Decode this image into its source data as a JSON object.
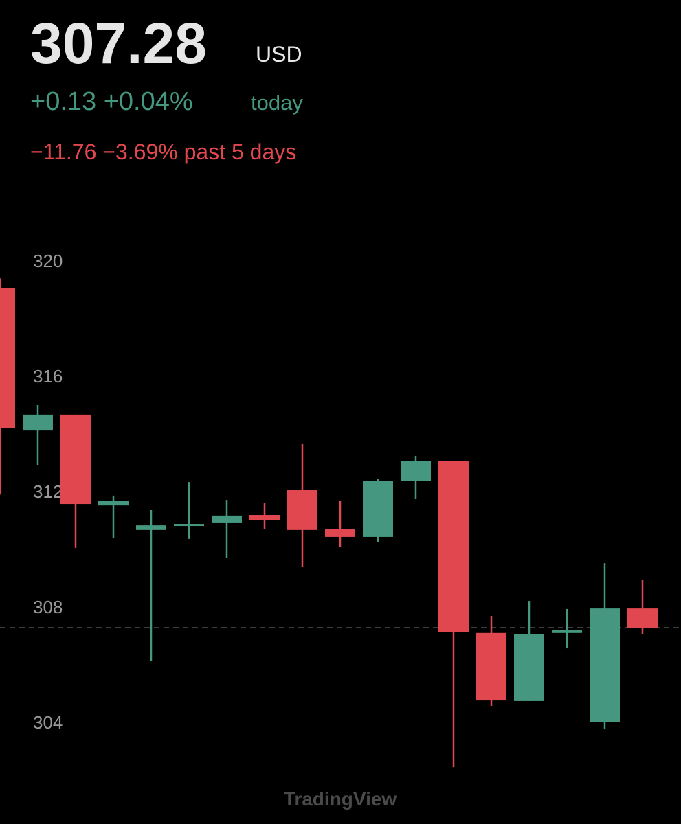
{
  "header": {
    "price": 307.28,
    "currency": "USD",
    "change_today": "+0.13 +0.04%",
    "today_label": "today",
    "change_5d": "−11.76 −3.69% past 5 days"
  },
  "chart_data": {
    "type": "candlestick",
    "candles": [
      {
        "open": 319.05,
        "high": 319.4,
        "low": 311.9,
        "close": 314.2
      },
      {
        "open": 314.14,
        "high": 315.0,
        "low": 312.93,
        "close": 314.67
      },
      {
        "open": 314.67,
        "high": 314.67,
        "low": 310.05,
        "close": 311.57
      },
      {
        "open": 311.52,
        "high": 311.86,
        "low": 310.38,
        "close": 311.67
      },
      {
        "open": 310.67,
        "high": 311.36,
        "low": 306.14,
        "close": 310.83
      },
      {
        "open": 310.83,
        "high": 312.33,
        "low": 310.36,
        "close": 310.88
      },
      {
        "open": 310.93,
        "high": 311.71,
        "low": 309.69,
        "close": 311.17
      },
      {
        "open": 311.19,
        "high": 311.6,
        "low": 310.71,
        "close": 311.0
      },
      {
        "open": 312.07,
        "high": 313.67,
        "low": 309.38,
        "close": 310.67
      },
      {
        "open": 310.71,
        "high": 311.67,
        "low": 310.07,
        "close": 310.43
      },
      {
        "open": 310.43,
        "high": 312.45,
        "low": 310.26,
        "close": 312.38
      },
      {
        "open": 312.38,
        "high": 313.24,
        "low": 311.74,
        "close": 313.07
      },
      {
        "open": 313.05,
        "high": 313.05,
        "low": 302.45,
        "close": 307.14
      },
      {
        "open": 307.1,
        "high": 307.69,
        "low": 304.57,
        "close": 304.76
      },
      {
        "open": 304.74,
        "high": 308.21,
        "low": 304.74,
        "close": 307.05
      },
      {
        "open": 307.1,
        "high": 307.93,
        "low": 306.57,
        "close": 307.19
      },
      {
        "open": 304.0,
        "high": 309.52,
        "low": 303.76,
        "close": 307.95
      },
      {
        "open": 307.95,
        "high": 308.95,
        "low": 307.05,
        "close": 307.28
      }
    ],
    "up_color": "#45987f",
    "down_color": "#e0474f",
    "ylim": [
      302,
      322
    ],
    "yticks": [
      304,
      308,
      312,
      316,
      320
    ],
    "watermark": "TradingView"
  }
}
